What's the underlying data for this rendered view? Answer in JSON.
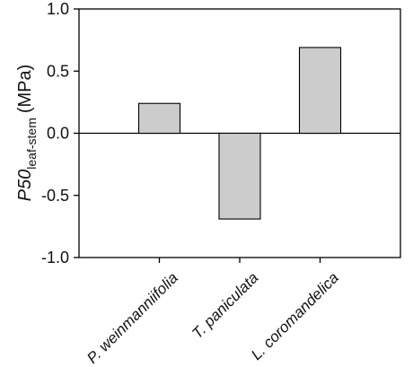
{
  "chart_data": {
    "type": "bar",
    "categories": [
      "P. weinmanniifolia",
      "T. paniculata",
      "L. coromandelica"
    ],
    "values": [
      0.24,
      -0.69,
      0.69
    ],
    "title": "",
    "xlabel": "",
    "ylabel": {
      "base": "P50",
      "subscript": "leaf-stem",
      "unit": "(MPa)"
    },
    "ylim": [
      -1.0,
      1.0
    ],
    "yticks": [
      "-1.0",
      "-0.5",
      "0.0",
      "0.5",
      "1.0"
    ],
    "ytick_values": [
      -1.0,
      -0.5,
      0.0,
      0.5,
      1.0
    ],
    "zero_line": true,
    "grid": false,
    "legend": "none",
    "bar_color": "#cccccc",
    "edge_color": "#000000"
  }
}
